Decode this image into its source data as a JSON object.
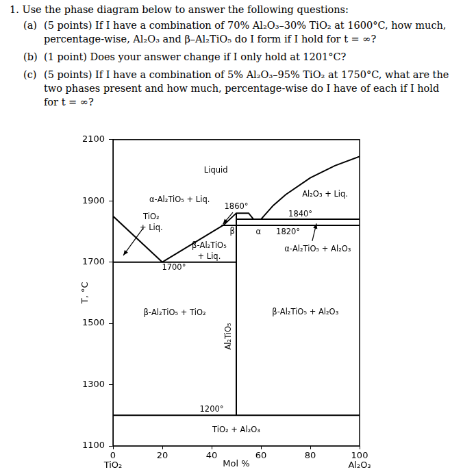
{
  "document": {
    "heading": "1. Use the phase diagram below to answer the following questions:",
    "parts": [
      {
        "label": "(a)",
        "text": "(5 points) If I have a combination of 70% Al₂O₃–30% TiO₂ at 1600°C, how much, percentage-wise, Al₂O₃ and β–Al₂TiO₅ do I form if I hold for t = ∞?"
      },
      {
        "label": "(b)",
        "text": "(1 point) Does your answer change if I only hold at 1201°C?"
      },
      {
        "label": "(c)",
        "text": "(5 points) If I have a combination of 5% Al₂O₃–95% TiO₂ at 1750°C, what are the two phases present and how much, percentage-wise do I have of each if I hold for t = ∞?"
      }
    ]
  },
  "chart_data": {
    "type": "line",
    "x_label": "Mol %",
    "y_label": "T, °C",
    "xlim": [
      0,
      100
    ],
    "xticks": [
      {
        "value": 0,
        "label": "0\nTiO₂"
      },
      20,
      40,
      60,
      80,
      {
        "value": 100,
        "label": "100\nAl₂O₃"
      }
    ],
    "ylim": [
      1100,
      2100
    ],
    "yticks": [
      1100,
      1300,
      1500,
      1700,
      1900,
      2100
    ],
    "grid": false,
    "color": "#000000",
    "lines": [
      [
        [
          0,
          1850
        ],
        [
          20,
          1700
        ]
      ],
      [
        [
          20,
          1700
        ],
        [
          45,
          1822
        ]
      ],
      [
        [
          45,
          1822
        ],
        [
          50,
          1860
        ],
        [
          55,
          1860
        ],
        [
          57,
          1840
        ]
      ],
      [
        [
          60,
          1840
        ],
        [
          65,
          1885
        ],
        [
          70,
          1920
        ],
        [
          80,
          1975
        ],
        [
          90,
          2015
        ],
        [
          100,
          2045
        ]
      ],
      [
        [
          0,
          1700
        ],
        [
          50,
          1700
        ]
      ],
      [
        [
          44,
          1820
        ],
        [
          100,
          1820
        ]
      ],
      [
        [
          50,
          1840
        ],
        [
          100,
          1840
        ]
      ],
      [
        [
          50,
          1200
        ],
        [
          50,
          1860
        ]
      ],
      [
        [
          0,
          1200
        ],
        [
          100,
          1200
        ]
      ]
    ],
    "annotations": [
      "Liquid",
      "Al₂O₃ + Liq.",
      "α-Al₂TiO₅ + Liq.",
      "1860°",
      "1840°",
      "TiO₂\n+ Liq.",
      "β",
      "α",
      "1820°",
      "β-Al₂TiO₅\n+ Liq.",
      "α-Al₂TiO₅ + Al₂O₃",
      "1700°",
      "β-Al₂TiO₅ + TiO₂",
      "β-Al₂TiO₅ + Al₂O₃",
      "Al₂TiO₅",
      "1200°",
      "TiO₂ + Al₂O₃"
    ]
  }
}
